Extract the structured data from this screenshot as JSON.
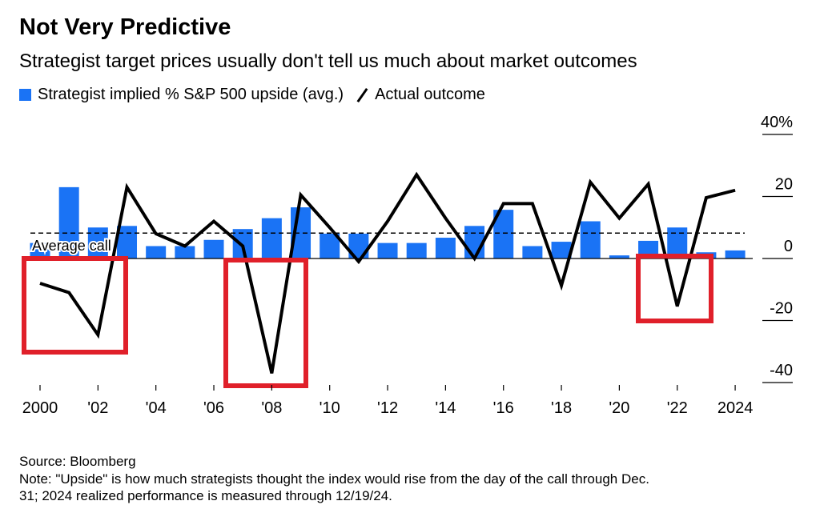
{
  "colors": {
    "bar": "#1a73f5",
    "line": "#000000",
    "annotation": "#e0202a"
  },
  "chart_data": {
    "type": "bar+line",
    "title": "Not Very Predictive",
    "subtitle": "Strategist target prices usually don't tell us much about market outcomes",
    "x": [
      2000,
      2001,
      2002,
      2003,
      2004,
      2005,
      2006,
      2007,
      2008,
      2009,
      2010,
      2011,
      2012,
      2013,
      2014,
      2015,
      2016,
      2017,
      2018,
      2019,
      2020,
      2021,
      2022,
      2023,
      2024
    ],
    "series": [
      {
        "name": "Strategist implied % S&P 500 upside (avg.)",
        "type": "bar",
        "values": [
          5,
          23,
          10,
          10.5,
          4,
          4,
          6,
          9.5,
          13,
          16.5,
          8,
          8,
          5,
          5,
          6.7,
          10.5,
          15.7,
          4,
          5.4,
          12,
          1,
          5.7,
          10,
          2,
          2.6
        ]
      },
      {
        "name": "Actual outcome",
        "type": "line",
        "values": [
          -8,
          -11,
          -24.6,
          23,
          8,
          4,
          12,
          4,
          -37,
          20.5,
          10,
          -1,
          12,
          27,
          13,
          0,
          17.7,
          17.7,
          -8.7,
          24.6,
          13,
          24,
          -15.4,
          19.6,
          22
        ]
      }
    ],
    "reference_line": {
      "label": "Average call",
      "value": 8.2,
      "style": "dashed"
    },
    "ylim": [
      -40,
      40
    ],
    "y_ticks": [
      {
        "v": 40,
        "label": "40%"
      },
      {
        "v": 20,
        "label": "20"
      },
      {
        "v": 0,
        "label": "0"
      },
      {
        "v": -20,
        "label": "-20"
      },
      {
        "v": -40,
        "label": "-40"
      }
    ],
    "x_ticks": [
      {
        "v": 2000,
        "label": "2000"
      },
      {
        "v": 2002,
        "label": "'02"
      },
      {
        "v": 2004,
        "label": "'04"
      },
      {
        "v": 2006,
        "label": "'06"
      },
      {
        "v": 2008,
        "label": "'08"
      },
      {
        "v": 2010,
        "label": "'10"
      },
      {
        "v": 2012,
        "label": "'12"
      },
      {
        "v": 2014,
        "label": "'14"
      },
      {
        "v": 2016,
        "label": "'16"
      },
      {
        "v": 2018,
        "label": "'18"
      },
      {
        "v": 2020,
        "label": "'20"
      },
      {
        "v": 2022,
        "label": "'22"
      },
      {
        "v": 2024,
        "label": "2024"
      }
    ],
    "highlighted_years": [
      [
        2000,
        2002
      ],
      [
        2008
      ],
      [
        2022
      ]
    ],
    "y_axis_position": "right",
    "grid": false
  },
  "footer": {
    "source": "Source: Bloomberg",
    "note_line1": "Note: \"Upside\" is how much strategists thought the index would rise from the day of the call through Dec.",
    "note_line2": "31; 2024 realized performance is measured through 12/19/24."
  }
}
